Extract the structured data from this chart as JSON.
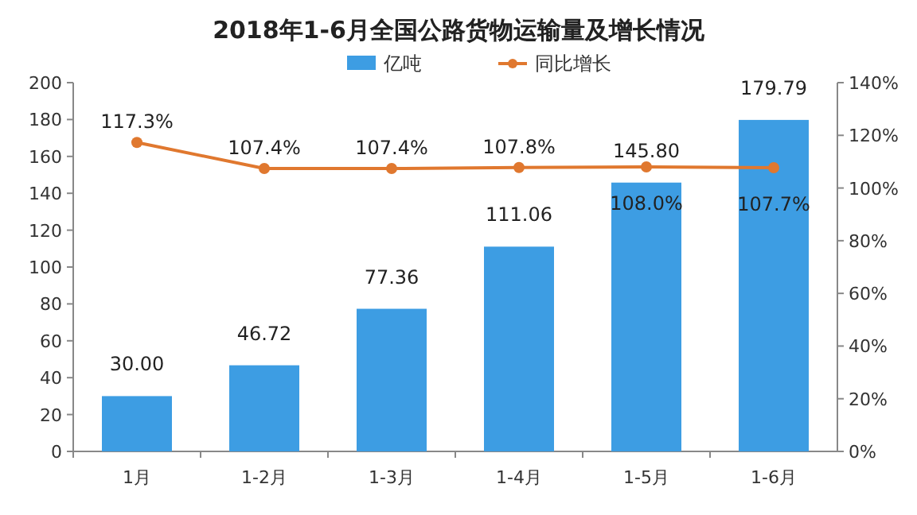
{
  "chart_data": {
    "type": "bar",
    "title": "2018年1-6月全国公路货物运输量及增长情况",
    "categories": [
      "1月",
      "1-2月",
      "1-3月",
      "1-4月",
      "1-5月",
      "1-6月"
    ],
    "series": [
      {
        "name": "亿吨",
        "color": "#3d9de3",
        "values": [
          30.0,
          46.72,
          77.36,
          111.06,
          145.8,
          179.79
        ],
        "value_labels": [
          "30.00",
          "46.72",
          "77.36",
          "111.06",
          "145.80",
          "179.79"
        ]
      },
      {
        "name": "同比增长",
        "type": "line",
        "axis": "y2",
        "color": "#e0782f",
        "values": [
          117.3,
          107.4,
          107.4,
          107.8,
          108.0,
          107.7
        ],
        "value_labels": [
          "117.3%",
          "107.4%",
          "107.4%",
          "107.8%",
          "108.0%",
          "107.7%"
        ]
      }
    ],
    "ylim": [
      0,
      200
    ],
    "yticks": [
      0,
      20,
      40,
      60,
      80,
      100,
      120,
      140,
      160,
      180,
      200
    ],
    "y2lim": [
      0,
      140
    ],
    "y2ticks": [
      {
        "value": 0,
        "label": "0%"
      },
      {
        "value": 20,
        "label": "20%"
      },
      {
        "value": 40,
        "label": "40%"
      },
      {
        "value": 60,
        "label": "60%"
      },
      {
        "value": 80,
        "label": "80%"
      },
      {
        "value": 100,
        "label": "100%"
      },
      {
        "value": 120,
        "label": "120%"
      },
      {
        "value": 140,
        "label": "140%"
      }
    ],
    "legend": "top",
    "marker": "circle",
    "line_style": "solid"
  }
}
